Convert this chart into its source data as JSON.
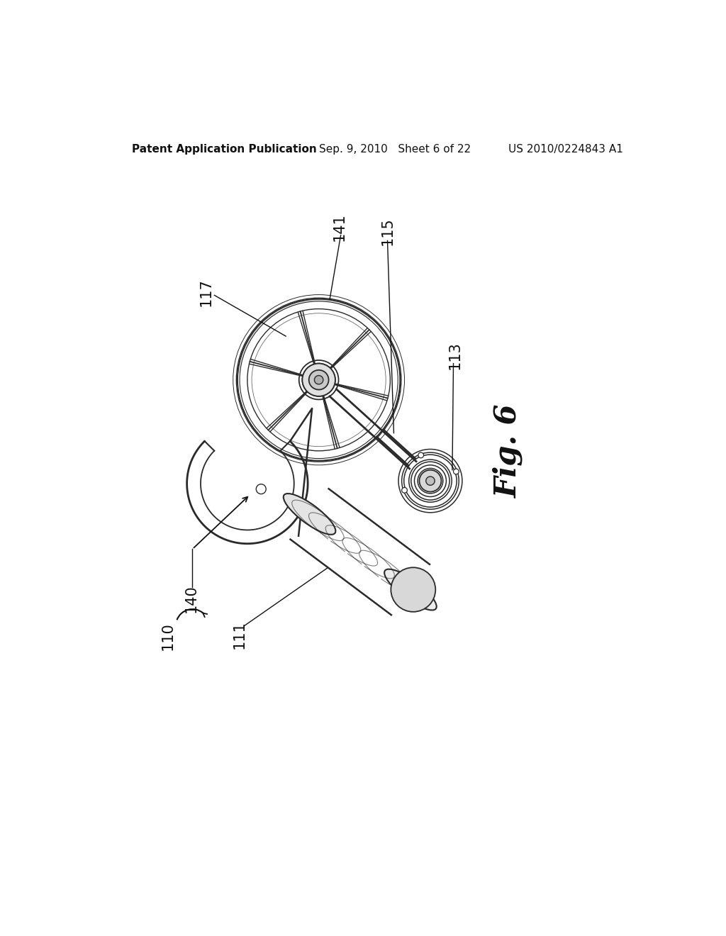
{
  "background_color": "#ffffff",
  "header_left": "Patent Application Publication",
  "header_center": "Sep. 9, 2010   Sheet 6 of 22",
  "header_right": "US 2010/0224843 A1",
  "fig_label": "Fig. 6",
  "line_color": "#2a2a2a",
  "label_fontsize": 15,
  "header_fontsize": 11
}
